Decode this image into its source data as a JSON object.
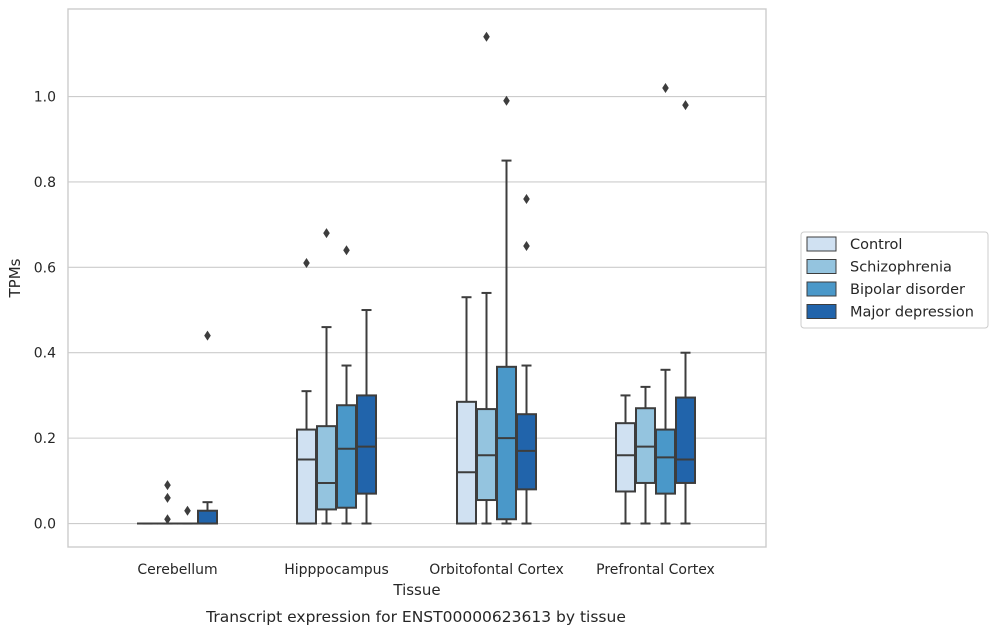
{
  "chart_data": {
    "type": "boxplot",
    "title": "",
    "caption": "Transcript expression for ENST00000623613 by tissue",
    "xlabel": "Tissue",
    "ylabel": "TPMs",
    "ylim": [
      -0.055,
      1.205
    ],
    "yticks": [
      0.0,
      0.2,
      0.4,
      0.6,
      0.8,
      1.0
    ],
    "ytick_labels": [
      "0.0",
      "0.2",
      "0.4",
      "0.6",
      "0.8",
      "1.0"
    ],
    "grid": "horizontal",
    "legend_position": "right",
    "categories": [
      "Cerebellum",
      "Hipppocampus",
      "Orbitofontal Cortex",
      "Prefrontal Cortex"
    ],
    "series": [
      {
        "name": "Control",
        "color": "#d0e1f2",
        "boxes": [
          {
            "whisker_low": 0.0,
            "q1": 0.0,
            "median": 0.0,
            "q3": 0.0,
            "whisker_high": 0.0,
            "outliers": []
          },
          {
            "whisker_low": 0.0,
            "q1": 0.0,
            "median": 0.15,
            "q3": 0.22,
            "whisker_high": 0.31,
            "outliers": [
              0.61
            ]
          },
          {
            "whisker_low": 0.0,
            "q1": 0.0,
            "median": 0.12,
            "q3": 0.285,
            "whisker_high": 0.53,
            "outliers": []
          },
          {
            "whisker_low": 0.0,
            "q1": 0.075,
            "median": 0.16,
            "q3": 0.235,
            "whisker_high": 0.3,
            "outliers": []
          }
        ]
      },
      {
        "name": "Schizophrenia",
        "color": "#94c4df",
        "boxes": [
          {
            "whisker_low": 0.0,
            "q1": 0.0,
            "median": 0.0,
            "q3": 0.0,
            "whisker_high": 0.0,
            "outliers": [
              0.01,
              0.06,
              0.09
            ]
          },
          {
            "whisker_low": 0.0,
            "q1": 0.033,
            "median": 0.095,
            "q3": 0.228,
            "whisker_high": 0.46,
            "outliers": [
              0.68
            ]
          },
          {
            "whisker_low": 0.0,
            "q1": 0.055,
            "median": 0.16,
            "q3": 0.268,
            "whisker_high": 0.54,
            "outliers": [
              1.14
            ]
          },
          {
            "whisker_low": 0.0,
            "q1": 0.095,
            "median": 0.18,
            "q3": 0.27,
            "whisker_high": 0.32,
            "outliers": []
          }
        ]
      },
      {
        "name": "Bipolar disorder",
        "color": "#4a98c9",
        "boxes": [
          {
            "whisker_low": 0.0,
            "q1": 0.0,
            "median": 0.0,
            "q3": 0.0,
            "whisker_high": 0.0,
            "outliers": [
              0.03
            ]
          },
          {
            "whisker_low": 0.0,
            "q1": 0.037,
            "median": 0.175,
            "q3": 0.277,
            "whisker_high": 0.37,
            "outliers": [
              0.64
            ]
          },
          {
            "whisker_low": 0.0,
            "q1": 0.01,
            "median": 0.2,
            "q3": 0.367,
            "whisker_high": 0.85,
            "outliers": [
              0.99
            ]
          },
          {
            "whisker_low": 0.0,
            "q1": 0.07,
            "median": 0.155,
            "q3": 0.22,
            "whisker_high": 0.36,
            "outliers": [
              1.02
            ]
          }
        ]
      },
      {
        "name": "Major depression",
        "color": "#2164ab",
        "boxes": [
          {
            "whisker_low": 0.0,
            "q1": 0.0,
            "median": 0.0,
            "q3": 0.03,
            "whisker_high": 0.05,
            "outliers": [
              0.44
            ]
          },
          {
            "whisker_low": 0.0,
            "q1": 0.07,
            "median": 0.18,
            "q3": 0.3,
            "whisker_high": 0.5,
            "outliers": []
          },
          {
            "whisker_low": 0.0,
            "q1": 0.08,
            "median": 0.17,
            "q3": 0.256,
            "whisker_high": 0.37,
            "outliers": [
              0.65,
              0.76
            ]
          },
          {
            "whisker_low": 0.0,
            "q1": 0.095,
            "median": 0.15,
            "q3": 0.295,
            "whisker_high": 0.4,
            "outliers": [
              0.98
            ]
          }
        ]
      }
    ]
  }
}
